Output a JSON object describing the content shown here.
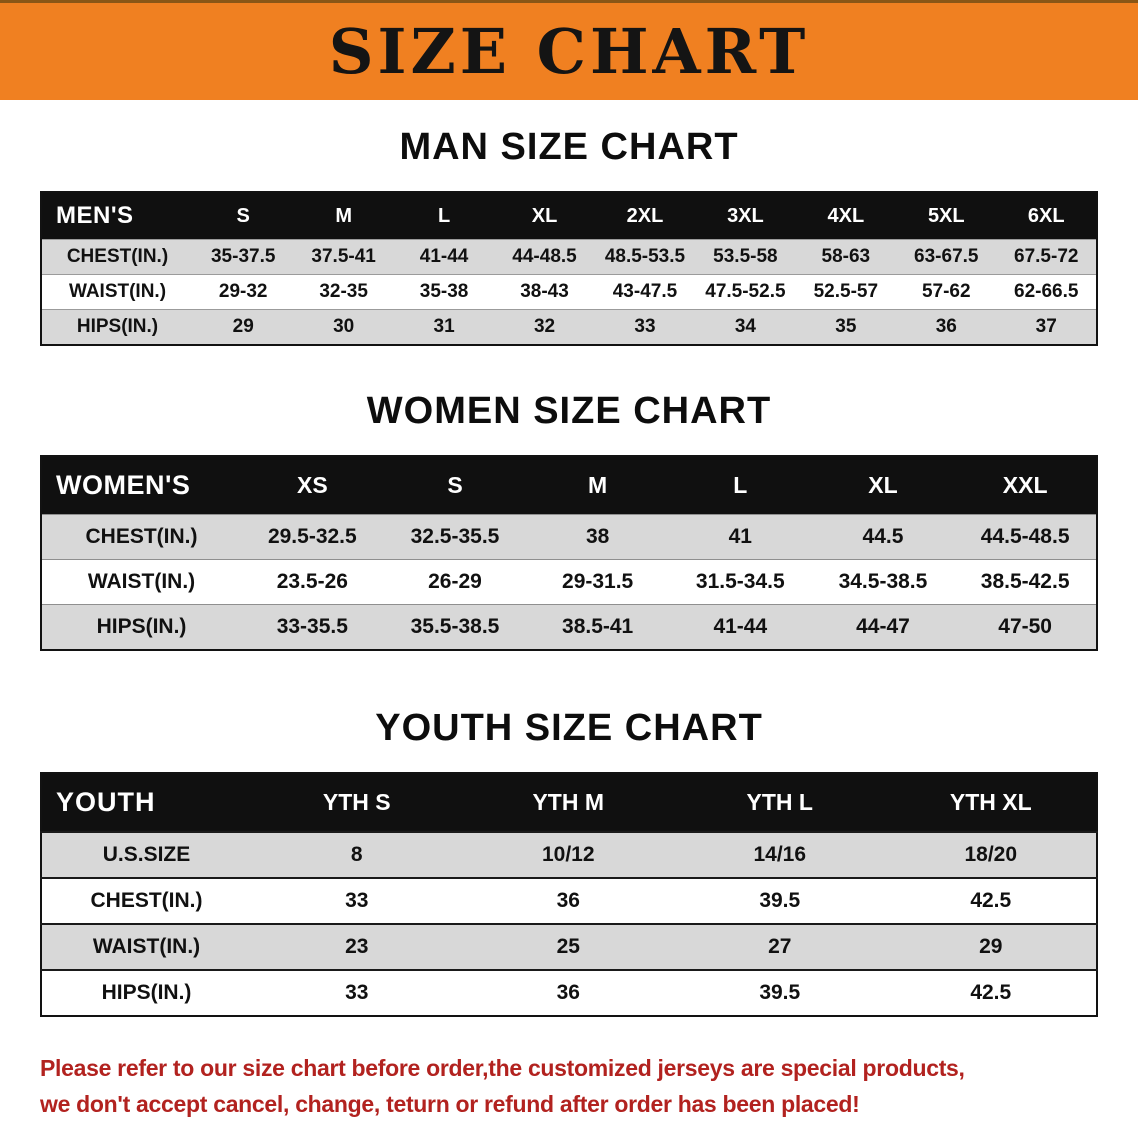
{
  "banner": {
    "title": "SIZE CHART"
  },
  "sections": [
    {
      "heading": "MAN SIZE CHART",
      "table": {
        "header": [
          "MEN'S",
          "S",
          "M",
          "L",
          "XL",
          "2XL",
          "3XL",
          "4XL",
          "5XL",
          "6XL"
        ],
        "rows": [
          [
            "CHEST(IN.)",
            "35-37.5",
            "37.5-41",
            "41-44",
            "44-48.5",
            "48.5-53.5",
            "53.5-58",
            "58-63",
            "63-67.5",
            "67.5-72"
          ],
          [
            "WAIST(IN.)",
            "29-32",
            "32-35",
            "35-38",
            "38-43",
            "43-47.5",
            "47.5-52.5",
            "52.5-57",
            "57-62",
            "62-66.5"
          ],
          [
            "HIPS(IN.)",
            "29",
            "30",
            "31",
            "32",
            "33",
            "34",
            "35",
            "36",
            "37"
          ]
        ],
        "row_shading": [
          "gray",
          "white",
          "gray"
        ]
      }
    },
    {
      "heading": "WOMEN SIZE CHART",
      "table": {
        "header": [
          "WOMEN'S",
          "XS",
          "S",
          "M",
          "L",
          "XL",
          "XXL"
        ],
        "rows": [
          [
            "CHEST(IN.)",
            "29.5-32.5",
            "32.5-35.5",
            "38",
            "41",
            "44.5",
            "44.5-48.5"
          ],
          [
            "WAIST(IN.)",
            "23.5-26",
            "26-29",
            "29-31.5",
            "31.5-34.5",
            "34.5-38.5",
            "38.5-42.5"
          ],
          [
            "HIPS(IN.)",
            "33-35.5",
            "35.5-38.5",
            "38.5-41",
            "41-44",
            "44-47",
            "47-50"
          ]
        ],
        "row_shading": [
          "gray",
          "white",
          "gray"
        ]
      }
    },
    {
      "heading": "YOUTH SIZE CHART",
      "table": {
        "header": [
          "YOUTH",
          "YTH S",
          "YTH M",
          "YTH L",
          "YTH XL"
        ],
        "rows": [
          [
            "U.S.SIZE",
            "8",
            "10/12",
            "14/16",
            "18/20"
          ],
          [
            "CHEST(IN.)",
            "33",
            "36",
            "39.5",
            "42.5"
          ],
          [
            "WAIST(IN.)",
            "23",
            "25",
            "27",
            "29"
          ],
          [
            "HIPS(IN.)",
            "33",
            "36",
            "39.5",
            "42.5"
          ]
        ],
        "row_shading": [
          "gray",
          "white",
          "gray",
          "white"
        ]
      }
    }
  ],
  "footer": {
    "line1": "Please refer to our size chart before order,the customized jerseys are special products,",
    "line2": "we don't accept cancel, change, teturn or refund after order has been placed!"
  },
  "colors": {
    "banner_bg": "#f08021",
    "table_header_bg": "#101010",
    "row_gray": "#d8d8d8",
    "footer_text": "#b2221f"
  }
}
